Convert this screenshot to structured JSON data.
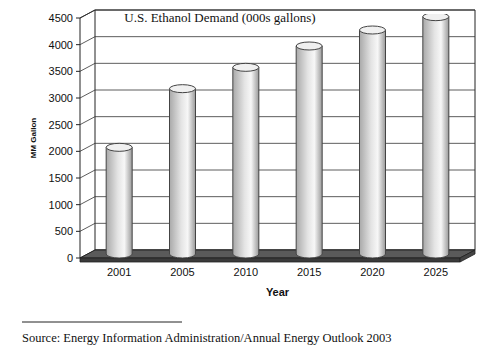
{
  "chart_data": {
    "type": "bar",
    "title": "U.S. Ethanol Demand (000s gallons)",
    "x_label": "Year",
    "y_label": "MM Gallon",
    "annotations": [
      "Source: Energy Information Administration/Annual Energy Outlook 2003"
    ],
    "categories": [
      "2001",
      "2005",
      "2010",
      "2015",
      "2020",
      "2025"
    ],
    "values": [
      2000,
      3100,
      3500,
      3900,
      4200,
      4450
    ],
    "color": "#e4e4e4",
    "ylim": [
      0,
      4500
    ],
    "yticks": [
      0,
      500,
      1000,
      1500,
      2000,
      2500,
      3000,
      3500,
      4000,
      4500
    ],
    "grid": true
  }
}
